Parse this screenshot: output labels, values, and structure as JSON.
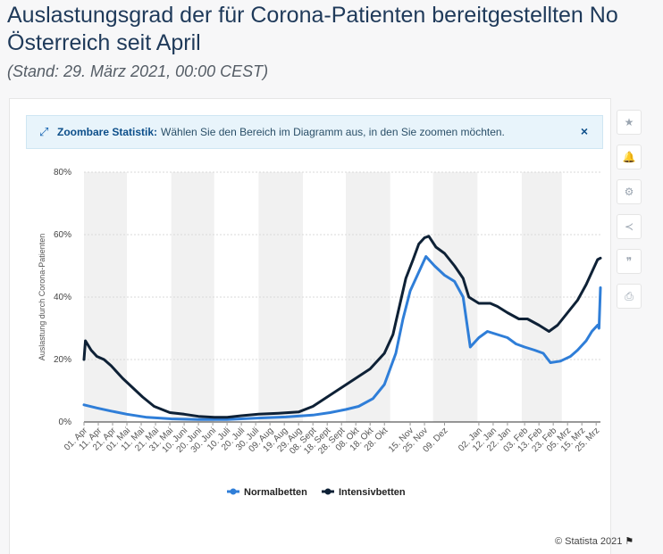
{
  "header": {
    "title_line1": "Auslastungsgrad der für Corona-Patienten bereitgestellten No",
    "title_line2": "Österreich seit April",
    "subtitle": "(Stand: 29. März 2021, 00:00 CEST)"
  },
  "banner": {
    "strong": "Zoombare Statistik:",
    "text": "Wählen Sie den Bereich im Diagramm aus, in den Sie zoomen möchten.",
    "close": "×"
  },
  "toolbar": {
    "icons": [
      "star-icon",
      "bell-icon",
      "gear-icon",
      "share-icon",
      "quote-icon",
      "print-icon"
    ],
    "glyphs": [
      "★",
      "🔔",
      "⚙",
      "≺",
      "❞",
      "⎙"
    ]
  },
  "credit": {
    "text": "© Statista 2021"
  },
  "colors": {
    "normal": "#2f7ed8",
    "intensiv": "#0e2136",
    "band": "#f1f1f1",
    "grid": "#d9d9d9"
  },
  "chart_data": {
    "type": "line",
    "title": "",
    "xlabel": "",
    "ylabel": "Auslastung durch Corona-Patienten",
    "ylim": [
      0,
      80
    ],
    "yticks": [
      0,
      20,
      40,
      60,
      80
    ],
    "ytick_labels": [
      "0%",
      "20%",
      "40%",
      "60%",
      "80%"
    ],
    "grid": true,
    "legend": "bottom-center",
    "xlim": [
      "2020-04-01",
      "2021-03-28"
    ],
    "x_ticks": [
      "2020-04-01",
      "2020-04-11",
      "2020-04-21",
      "2020-05-01",
      "2020-05-11",
      "2020-05-21",
      "2020-05-31",
      "2020-06-10",
      "2020-06-20",
      "2020-06-30",
      "2020-07-10",
      "2020-07-20",
      "2020-07-30",
      "2020-08-09",
      "2020-08-19",
      "2020-08-29",
      "2020-09-08",
      "2020-09-18",
      "2020-09-28",
      "2020-10-08",
      "2020-10-18",
      "2020-10-28",
      "2020-11-15",
      "2020-11-25",
      "2020-12-09",
      "2021-01-02",
      "2021-01-12",
      "2021-01-22",
      "2021-02-03",
      "2021-02-13",
      "2021-02-23",
      "2021-03-05",
      "2021-03-15",
      "2021-03-25"
    ],
    "x_tick_labels": [
      "01. Apr",
      "11. Apr",
      "21. Apr",
      "01. Mai",
      "11. Mai",
      "21. Mai",
      "31. Mai",
      "10. Juni",
      "20. Juni",
      "30. Juni",
      "10. Juli",
      "20. Juli",
      "30. Juli",
      "09. Aug",
      "19. Aug",
      "29. Aug",
      "08. Sept",
      "18. Sept",
      "28. Sept",
      "08. Okt",
      "18. Okt",
      "28. Okt",
      "15. Nov",
      "25. Nov",
      "09. Dez",
      "02. Jan",
      "12. Jan",
      "22. Jan",
      "03. Feb",
      "13. Feb",
      "23. Feb",
      "05. Mrz",
      "15. Mrz",
      "25. Mrz"
    ],
    "series": [
      {
        "name": "Normalbetten",
        "color": "#2f7ed8",
        "points": [
          [
            "2020-04-01",
            5.5
          ],
          [
            "2020-04-10",
            4.5
          ],
          [
            "2020-04-20",
            3.5
          ],
          [
            "2020-05-01",
            2.5
          ],
          [
            "2020-05-15",
            1.5
          ],
          [
            "2020-06-01",
            1.0
          ],
          [
            "2020-06-20",
            0.8
          ],
          [
            "2020-07-10",
            0.8
          ],
          [
            "2020-07-30",
            1.2
          ],
          [
            "2020-08-20",
            1.6
          ],
          [
            "2020-09-08",
            2.2
          ],
          [
            "2020-09-20",
            3.0
          ],
          [
            "2020-10-01",
            4.0
          ],
          [
            "2020-10-10",
            5.0
          ],
          [
            "2020-10-20",
            7.5
          ],
          [
            "2020-10-28",
            12.0
          ],
          [
            "2020-11-05",
            22.0
          ],
          [
            "2020-11-10",
            33.0
          ],
          [
            "2020-11-15",
            42.0
          ],
          [
            "2020-11-20",
            47.0
          ],
          [
            "2020-11-26",
            53.0
          ],
          [
            "2020-12-02",
            50.0
          ],
          [
            "2020-12-09",
            47.0
          ],
          [
            "2020-12-16",
            45.0
          ],
          [
            "2020-12-22",
            40.0
          ],
          [
            "2020-12-27",
            24.0
          ],
          [
            "2021-01-02",
            27.0
          ],
          [
            "2021-01-08",
            29.0
          ],
          [
            "2021-01-15",
            28.0
          ],
          [
            "2021-01-22",
            27.0
          ],
          [
            "2021-01-28",
            25.0
          ],
          [
            "2021-02-03",
            24.0
          ],
          [
            "2021-02-10",
            23.0
          ],
          [
            "2021-02-16",
            22.0
          ],
          [
            "2021-02-21",
            19.0
          ],
          [
            "2021-02-28",
            19.5
          ],
          [
            "2021-03-07",
            21.0
          ],
          [
            "2021-03-12",
            23.0
          ],
          [
            "2021-03-18",
            26.0
          ],
          [
            "2021-03-22",
            29.0
          ],
          [
            "2021-03-26",
            31.0
          ],
          [
            "2021-03-27",
            30.0
          ],
          [
            "2021-03-28",
            43.0
          ]
        ]
      },
      {
        "name": "Intensivbetten",
        "color": "#0e2136",
        "points": [
          [
            "2020-04-01",
            20.0
          ],
          [
            "2020-04-02",
            26.0
          ],
          [
            "2020-04-06",
            23.0
          ],
          [
            "2020-04-10",
            21.0
          ],
          [
            "2020-04-15",
            20.0
          ],
          [
            "2020-04-20",
            18.0
          ],
          [
            "2020-04-28",
            14.0
          ],
          [
            "2020-05-05",
            11.0
          ],
          [
            "2020-05-12",
            8.0
          ],
          [
            "2020-05-20",
            5.0
          ],
          [
            "2020-05-31",
            3.0
          ],
          [
            "2020-06-10",
            2.5
          ],
          [
            "2020-06-20",
            1.8
          ],
          [
            "2020-07-01",
            1.5
          ],
          [
            "2020-07-10",
            1.5
          ],
          [
            "2020-07-20",
            2.0
          ],
          [
            "2020-08-01",
            2.5
          ],
          [
            "2020-08-15",
            2.8
          ],
          [
            "2020-08-29",
            3.2
          ],
          [
            "2020-09-08",
            5.0
          ],
          [
            "2020-09-18",
            8.0
          ],
          [
            "2020-09-28",
            11.0
          ],
          [
            "2020-10-08",
            14.0
          ],
          [
            "2020-10-18",
            17.0
          ],
          [
            "2020-10-28",
            22.0
          ],
          [
            "2020-11-03",
            28.0
          ],
          [
            "2020-11-08",
            38.0
          ],
          [
            "2020-11-12",
            46.0
          ],
          [
            "2020-11-17",
            52.0
          ],
          [
            "2020-11-21",
            57.0
          ],
          [
            "2020-11-25",
            59.0
          ],
          [
            "2020-11-28",
            59.5
          ],
          [
            "2020-12-03",
            56.0
          ],
          [
            "2020-12-09",
            54.0
          ],
          [
            "2020-12-16",
            50.0
          ],
          [
            "2020-12-22",
            46.0
          ],
          [
            "2020-12-26",
            40.0
          ],
          [
            "2021-01-02",
            38.0
          ],
          [
            "2021-01-10",
            38.0
          ],
          [
            "2021-01-15",
            37.0
          ],
          [
            "2021-01-22",
            35.0
          ],
          [
            "2021-01-30",
            33.0
          ],
          [
            "2021-02-05",
            33.0
          ],
          [
            "2021-02-13",
            31.0
          ],
          [
            "2021-02-20",
            29.0
          ],
          [
            "2021-02-26",
            31.0
          ],
          [
            "2021-03-05",
            35.0
          ],
          [
            "2021-03-12",
            39.0
          ],
          [
            "2021-03-18",
            44.0
          ],
          [
            "2021-03-23",
            49.0
          ],
          [
            "2021-03-26",
            52.0
          ],
          [
            "2021-03-28",
            52.5
          ]
        ]
      }
    ]
  }
}
